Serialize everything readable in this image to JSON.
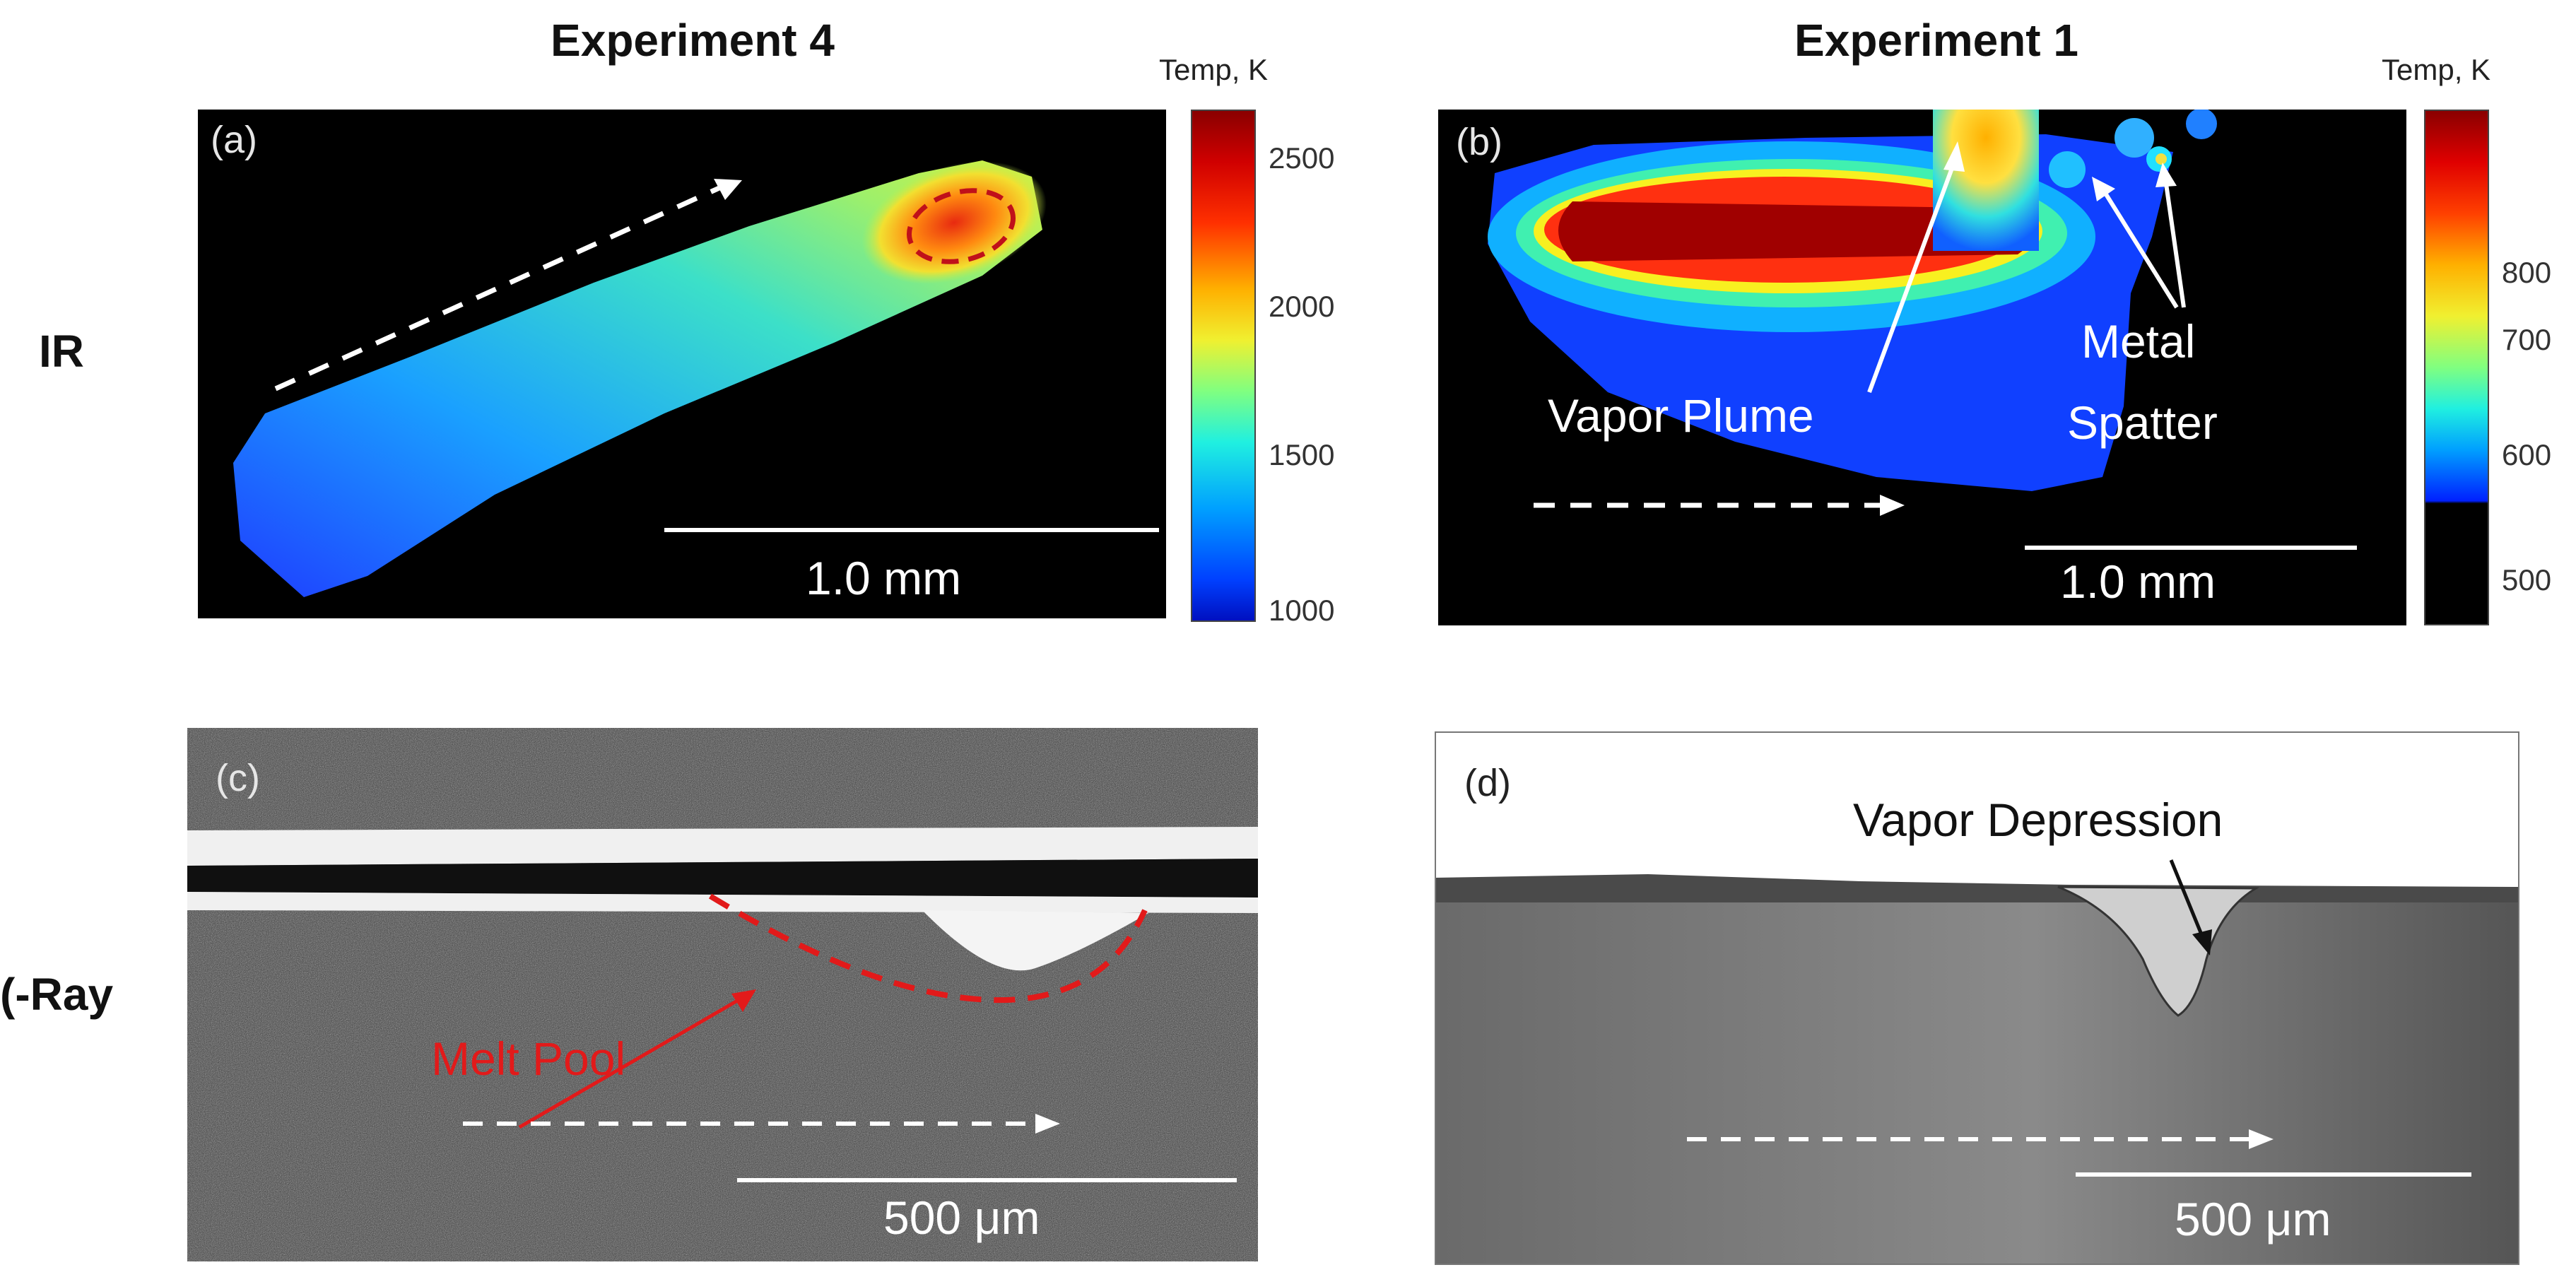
{
  "columns": [
    {
      "title": "Experiment 4"
    },
    {
      "title": "Experiment 1"
    }
  ],
  "rows": [
    {
      "label": "IR"
    },
    {
      "label": "(-Ray"
    }
  ],
  "panels": {
    "a": {
      "letter": "(a)",
      "scale_bar": "1.0 mm",
      "colorbar": {
        "title": "Temp, K",
        "ticks": [
          "2500",
          "2000",
          "1500",
          "1000"
        ],
        "colormap": "jet",
        "range": [
          1000,
          2600
        ]
      }
    },
    "b": {
      "letter": "(b)",
      "scale_bar": "1.0 mm",
      "annotations": {
        "vapor_plume": "Vapor Plume",
        "metal_spatter_line1": "Metal",
        "metal_spatter_line2": "Spatter"
      },
      "colorbar": {
        "title": "Temp, K",
        "ticks": [
          "800",
          "700",
          "600",
          "500"
        ],
        "colormap": "jet with black below 550",
        "range": [
          480,
          880
        ]
      }
    },
    "c": {
      "letter": "(c)",
      "scale_bar": "500 μm",
      "annotations": {
        "melt_pool": "Melt Pool"
      }
    },
    "d": {
      "letter": "(d)",
      "scale_bar": "500 μm",
      "annotations": {
        "vapor_depression": "Vapor Depression"
      }
    }
  },
  "colors": {
    "dashed_arrow": "#ffffff",
    "melt_pool_outline": "#e21a1a",
    "ir_background": "#000000"
  }
}
